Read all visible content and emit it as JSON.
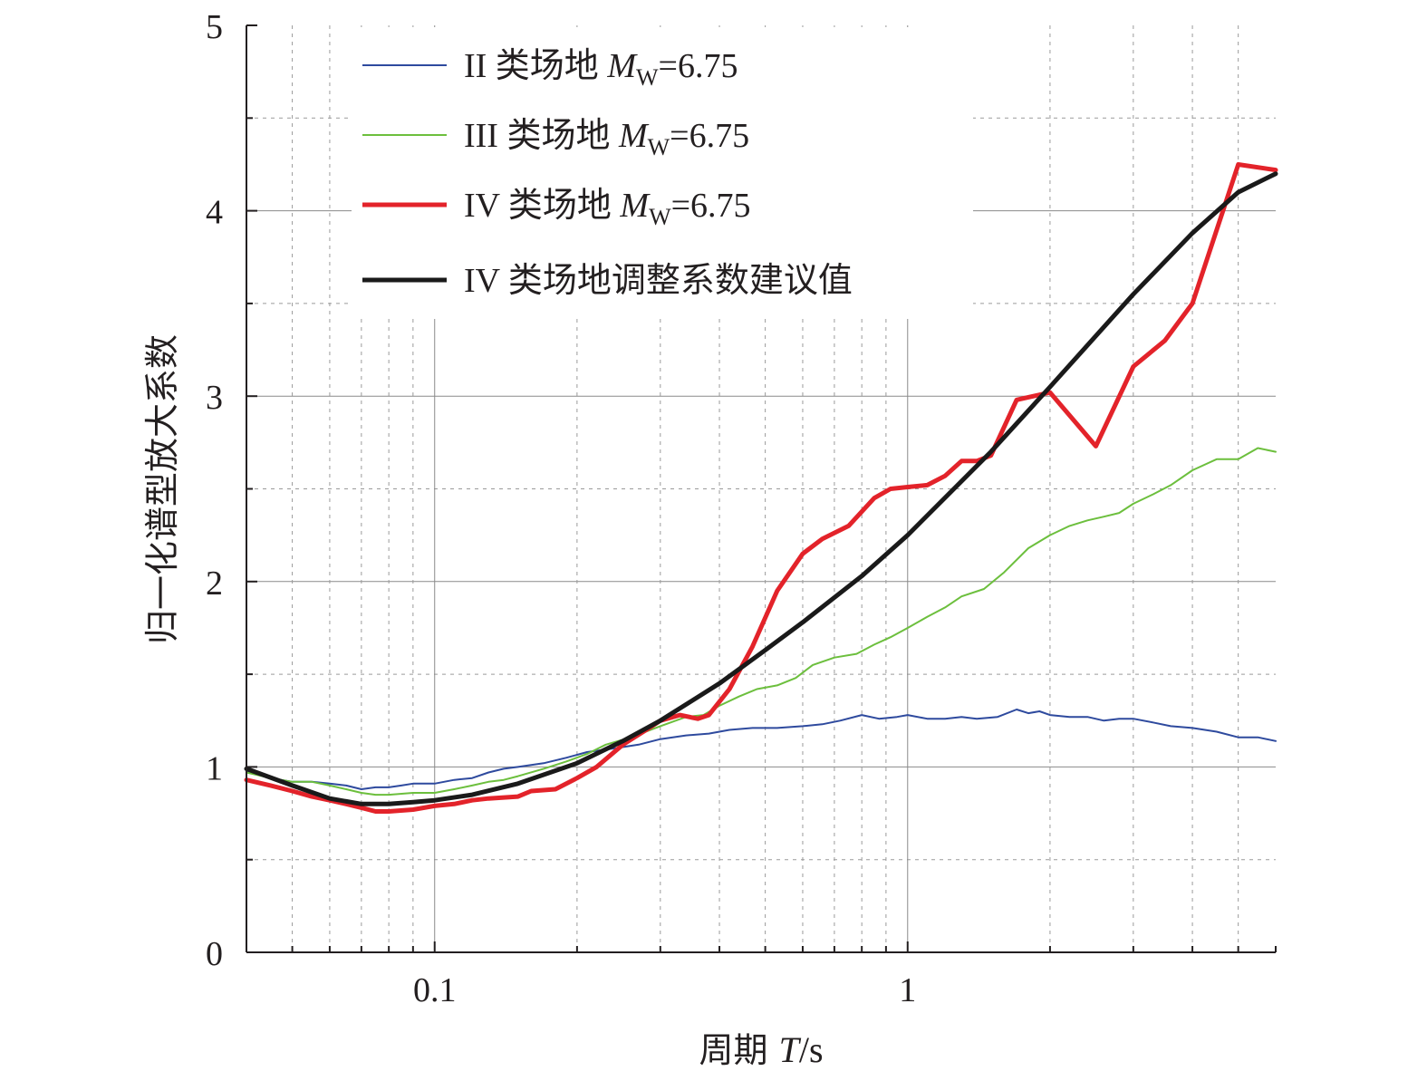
{
  "chart_data": {
    "type": "line",
    "xlabel_prefix": "周期 ",
    "xlabel_var": "T",
    "xlabel_unit": "/s",
    "ylabel": "归一化谱型放大系数",
    "x_scale": "log",
    "xlim": [
      0.04,
      6
    ],
    "ylim": [
      0,
      5
    ],
    "x_ticks": [
      {
        "value": 0.1,
        "label": "0.1"
      },
      {
        "value": 1,
        "label": "1"
      }
    ],
    "y_ticks": [
      {
        "value": 0,
        "label": "0"
      },
      {
        "value": 1,
        "label": "1"
      },
      {
        "value": 2,
        "label": "2"
      },
      {
        "value": 3,
        "label": "3"
      },
      {
        "value": 4,
        "label": "4"
      },
      {
        "value": 5,
        "label": "5"
      }
    ],
    "grid": true,
    "legend_position": "top-left",
    "series": [
      {
        "name_prefix": "II 类场地 ",
        "name_var": "M",
        "name_sub": "W",
        "name_value": "=6.75",
        "color": "#2e4a9e",
        "stroke_width": 2,
        "points": [
          [
            0.04,
            0.98
          ],
          [
            0.045,
            0.94
          ],
          [
            0.05,
            0.92
          ],
          [
            0.055,
            0.92
          ],
          [
            0.06,
            0.91
          ],
          [
            0.065,
            0.9
          ],
          [
            0.07,
            0.88
          ],
          [
            0.075,
            0.89
          ],
          [
            0.08,
            0.89
          ],
          [
            0.085,
            0.9
          ],
          [
            0.09,
            0.91
          ],
          [
            0.1,
            0.91
          ],
          [
            0.11,
            0.93
          ],
          [
            0.12,
            0.94
          ],
          [
            0.13,
            0.97
          ],
          [
            0.14,
            0.99
          ],
          [
            0.15,
            1.0
          ],
          [
            0.17,
            1.02
          ],
          [
            0.19,
            1.05
          ],
          [
            0.21,
            1.08
          ],
          [
            0.24,
            1.1
          ],
          [
            0.27,
            1.12
          ],
          [
            0.3,
            1.15
          ],
          [
            0.34,
            1.17
          ],
          [
            0.38,
            1.18
          ],
          [
            0.42,
            1.2
          ],
          [
            0.47,
            1.21
          ],
          [
            0.53,
            1.21
          ],
          [
            0.6,
            1.22
          ],
          [
            0.66,
            1.23
          ],
          [
            0.72,
            1.25
          ],
          [
            0.8,
            1.28
          ],
          [
            0.87,
            1.26
          ],
          [
            0.95,
            1.27
          ],
          [
            1.0,
            1.28
          ],
          [
            1.1,
            1.26
          ],
          [
            1.2,
            1.26
          ],
          [
            1.3,
            1.27
          ],
          [
            1.4,
            1.26
          ],
          [
            1.55,
            1.27
          ],
          [
            1.7,
            1.31
          ],
          [
            1.8,
            1.29
          ],
          [
            1.9,
            1.3
          ],
          [
            2.0,
            1.28
          ],
          [
            2.2,
            1.27
          ],
          [
            2.4,
            1.27
          ],
          [
            2.6,
            1.25
          ],
          [
            2.8,
            1.26
          ],
          [
            3.0,
            1.26
          ],
          [
            3.3,
            1.24
          ],
          [
            3.6,
            1.22
          ],
          [
            4.0,
            1.21
          ],
          [
            4.5,
            1.19
          ],
          [
            5.0,
            1.16
          ],
          [
            5.5,
            1.16
          ],
          [
            6.0,
            1.14
          ]
        ]
      },
      {
        "name_prefix": "III 类场地 ",
        "name_var": "M",
        "name_sub": "W",
        "name_value": "=6.75",
        "color": "#6cbf3d",
        "stroke_width": 2,
        "points": [
          [
            0.04,
            0.97
          ],
          [
            0.045,
            0.94
          ],
          [
            0.05,
            0.92
          ],
          [
            0.055,
            0.92
          ],
          [
            0.06,
            0.9
          ],
          [
            0.065,
            0.88
          ],
          [
            0.07,
            0.86
          ],
          [
            0.075,
            0.85
          ],
          [
            0.08,
            0.85
          ],
          [
            0.09,
            0.86
          ],
          [
            0.1,
            0.86
          ],
          [
            0.11,
            0.88
          ],
          [
            0.12,
            0.9
          ],
          [
            0.13,
            0.92
          ],
          [
            0.14,
            0.93
          ],
          [
            0.15,
            0.95
          ],
          [
            0.17,
            0.99
          ],
          [
            0.19,
            1.03
          ],
          [
            0.21,
            1.07
          ],
          [
            0.23,
            1.12
          ],
          [
            0.26,
            1.16
          ],
          [
            0.3,
            1.22
          ],
          [
            0.34,
            1.27
          ],
          [
            0.37,
            1.28
          ],
          [
            0.4,
            1.33
          ],
          [
            0.44,
            1.38
          ],
          [
            0.48,
            1.42
          ],
          [
            0.53,
            1.44
          ],
          [
            0.58,
            1.48
          ],
          [
            0.63,
            1.55
          ],
          [
            0.7,
            1.59
          ],
          [
            0.78,
            1.61
          ],
          [
            0.85,
            1.66
          ],
          [
            0.92,
            1.7
          ],
          [
            1.0,
            1.75
          ],
          [
            1.1,
            1.81
          ],
          [
            1.2,
            1.86
          ],
          [
            1.3,
            1.92
          ],
          [
            1.45,
            1.96
          ],
          [
            1.6,
            2.05
          ],
          [
            1.8,
            2.18
          ],
          [
            2.0,
            2.25
          ],
          [
            2.2,
            2.3
          ],
          [
            2.4,
            2.33
          ],
          [
            2.6,
            2.35
          ],
          [
            2.8,
            2.37
          ],
          [
            3.0,
            2.42
          ],
          [
            3.3,
            2.47
          ],
          [
            3.6,
            2.52
          ],
          [
            4.0,
            2.6
          ],
          [
            4.5,
            2.66
          ],
          [
            5.0,
            2.66
          ],
          [
            5.5,
            2.72
          ],
          [
            6.0,
            2.7
          ]
        ]
      },
      {
        "name_prefix": "IV 类场地 ",
        "name_var": "M",
        "name_sub": "W",
        "name_value": "=6.75",
        "color": "#e3232a",
        "stroke_width": 5,
        "points": [
          [
            0.04,
            0.93
          ],
          [
            0.045,
            0.9
          ],
          [
            0.05,
            0.87
          ],
          [
            0.055,
            0.84
          ],
          [
            0.06,
            0.82
          ],
          [
            0.065,
            0.8
          ],
          [
            0.07,
            0.78
          ],
          [
            0.075,
            0.76
          ],
          [
            0.08,
            0.76
          ],
          [
            0.09,
            0.77
          ],
          [
            0.1,
            0.79
          ],
          [
            0.11,
            0.8
          ],
          [
            0.12,
            0.82
          ],
          [
            0.13,
            0.83
          ],
          [
            0.15,
            0.84
          ],
          [
            0.16,
            0.87
          ],
          [
            0.18,
            0.88
          ],
          [
            0.2,
            0.94
          ],
          [
            0.22,
            1.0
          ],
          [
            0.25,
            1.12
          ],
          [
            0.28,
            1.2
          ],
          [
            0.3,
            1.25
          ],
          [
            0.33,
            1.28
          ],
          [
            0.36,
            1.26
          ],
          [
            0.38,
            1.28
          ],
          [
            0.42,
            1.42
          ],
          [
            0.47,
            1.65
          ],
          [
            0.53,
            1.95
          ],
          [
            0.6,
            2.15
          ],
          [
            0.66,
            2.23
          ],
          [
            0.75,
            2.3
          ],
          [
            0.85,
            2.45
          ],
          [
            0.92,
            2.5
          ],
          [
            1.0,
            2.51
          ],
          [
            1.1,
            2.52
          ],
          [
            1.2,
            2.57
          ],
          [
            1.3,
            2.65
          ],
          [
            1.4,
            2.65
          ],
          [
            1.5,
            2.68
          ],
          [
            1.7,
            2.98
          ],
          [
            2.0,
            3.02
          ],
          [
            2.5,
            2.73
          ],
          [
            3.0,
            3.16
          ],
          [
            3.5,
            3.3
          ],
          [
            4.0,
            3.5
          ],
          [
            5.0,
            4.25
          ],
          [
            6.0,
            4.22
          ]
        ]
      },
      {
        "name": "IV 类场地调整系数建议值",
        "color": "#1a1a1a",
        "stroke_width": 5,
        "points": [
          [
            0.04,
            0.99
          ],
          [
            0.05,
            0.9
          ],
          [
            0.06,
            0.83
          ],
          [
            0.07,
            0.8
          ],
          [
            0.08,
            0.8
          ],
          [
            0.09,
            0.81
          ],
          [
            0.1,
            0.82
          ],
          [
            0.12,
            0.85
          ],
          [
            0.15,
            0.91
          ],
          [
            0.2,
            1.02
          ],
          [
            0.25,
            1.14
          ],
          [
            0.3,
            1.25
          ],
          [
            0.4,
            1.45
          ],
          [
            0.5,
            1.63
          ],
          [
            0.6,
            1.78
          ],
          [
            0.8,
            2.03
          ],
          [
            1.0,
            2.25
          ],
          [
            1.5,
            2.7
          ],
          [
            2.0,
            3.05
          ],
          [
            3.0,
            3.55
          ],
          [
            4.0,
            3.88
          ],
          [
            5.0,
            4.1
          ],
          [
            6.0,
            4.2
          ]
        ]
      }
    ]
  }
}
